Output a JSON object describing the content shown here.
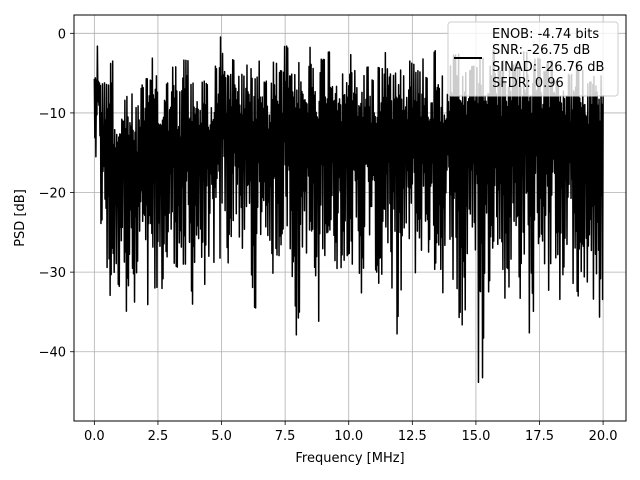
{
  "chart_data": {
    "type": "line",
    "title": "",
    "xlabel": "Frequency [MHz]",
    "ylabel": "PSD [dB]",
    "xlim": [
      -0.8,
      20.9
    ],
    "ylim": [
      -48.7,
      2.3
    ],
    "xticks": [
      0.0,
      2.5,
      5.0,
      7.5,
      10.0,
      12.5,
      15.0,
      17.5,
      20.0
    ],
    "xtick_labels": [
      "0.0",
      "2.5",
      "5.0",
      "7.5",
      "10.0",
      "12.5",
      "15.0",
      "17.5",
      "20.0"
    ],
    "yticks": [
      0,
      -10,
      -20,
      -30,
      -40
    ],
    "ytick_labels": [
      "0",
      "−10",
      "−20",
      "−30",
      "−40"
    ],
    "grid": true,
    "legend_position": "top-right",
    "legend": [
      "ENOB: -4.74 bits",
      "SNR: -26.75 dB",
      "SINAD: -26.76 dB",
      "SFDR: 0.96"
    ],
    "colors": {
      "line": "#000000",
      "grid": "#b0b0b0",
      "axes": "#000000"
    },
    "series": [
      {
        "x_start": 0.0,
        "x_step": 0.02,
        "envelope_max": [
          -1.3,
          -6,
          -3.5,
          -9,
          -8,
          -7.5,
          -9,
          -6.5,
          -5.5,
          -3,
          -7,
          -6,
          -4,
          -7,
          -3,
          -6,
          -5.5,
          -6,
          -7,
          -4,
          -0.1,
          -5,
          -3,
          -5,
          -4,
          -5.5,
          -3.5,
          -6,
          -3.5,
          -4.5,
          -1.5,
          -5,
          -3.5,
          -5,
          -1.5,
          -4.5,
          -3,
          -2,
          -3.5,
          -5,
          -2.5,
          -4.5,
          -5,
          -4,
          -5.5,
          -4,
          -2,
          -5,
          -2,
          -5,
          -3.5,
          -4.5,
          -3,
          -5,
          -2,
          -5,
          -4,
          -2.5,
          -5,
          -4.5,
          -4,
          -3,
          -4,
          -2,
          -4.5,
          -3,
          -4,
          -3.5,
          -2,
          -4,
          -3,
          -4.5,
          -3.5,
          -2.5,
          -4,
          -5,
          -3.5,
          -4.5,
          -6,
          -3,
          -5
        ],
        "envelope_min": [
          -15.5,
          -26,
          -36,
          -33,
          -29,
          -35,
          -38.5,
          -30,
          -38.5,
          -32,
          -34,
          -33,
          -29,
          -31,
          -29,
          -34.5,
          -30,
          -32,
          -28,
          -30,
          -25,
          -30,
          -24,
          -27,
          -28,
          -34.5,
          -27,
          -26,
          -31,
          -29,
          -26,
          -35,
          -39.5,
          -28,
          -33,
          -38.5,
          -28,
          -31,
          -30,
          -30,
          -28,
          -29,
          -33,
          -27,
          -30,
          -34,
          -28,
          -32,
          -38,
          -29,
          -28,
          -31,
          -28,
          -29,
          -31,
          -33,
          -26,
          -35,
          -40,
          -30,
          -28,
          -46.5,
          -33,
          -27,
          -30,
          -37,
          -29,
          -34,
          -30,
          -38,
          -28,
          -30,
          -33,
          -29,
          -36,
          -29,
          -33,
          -39,
          -32,
          -38,
          -37
        ]
      }
    ]
  }
}
